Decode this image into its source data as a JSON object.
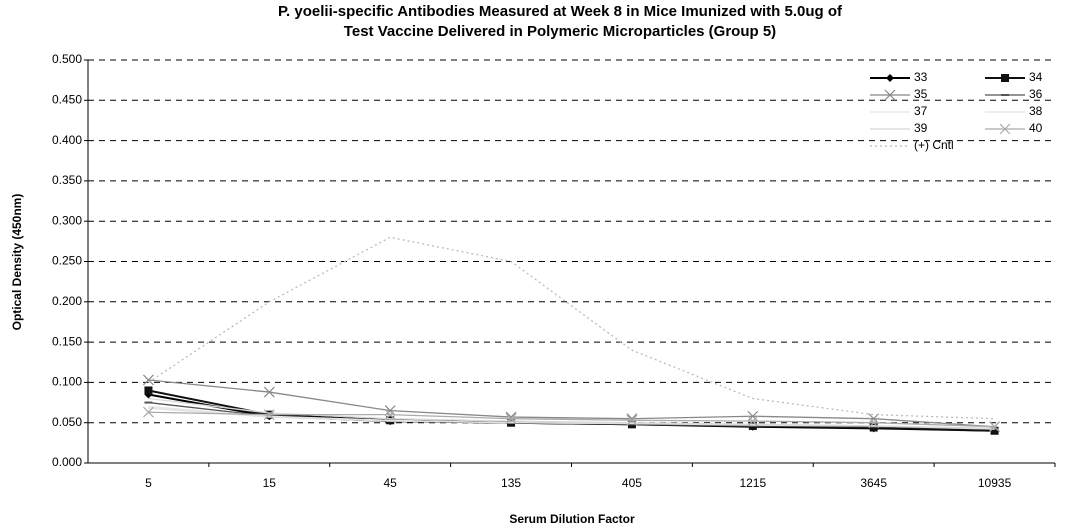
{
  "chart_data": {
    "type": "line",
    "title": [
      "P. yoelii-specific Antibodies Measured at Week 8 in Mice Imunized with 5.0ug of",
      "Test Vaccine Delivered in Polymeric Microparticles (Group 5)"
    ],
    "x_label": "Serum Dilution Factor",
    "y_label": "Optical Density (450nm)",
    "categories": [
      "5",
      "15",
      "45",
      "135",
      "405",
      "1215",
      "3645",
      "10935"
    ],
    "ylim": [
      0,
      0.5
    ],
    "yticks": [
      {
        "value": 0,
        "label": "0.000"
      },
      {
        "value": 0.05,
        "label": "0.050"
      },
      {
        "value": 0.1,
        "label": "0.100"
      },
      {
        "value": 0.15,
        "label": "0.150"
      },
      {
        "value": 0.2,
        "label": "0.200"
      },
      {
        "value": 0.25,
        "label": "0.250"
      },
      {
        "value": 0.3,
        "label": "0.300"
      },
      {
        "value": 0.35,
        "label": "0.350"
      },
      {
        "value": 0.4,
        "label": "0.400"
      },
      {
        "value": 0.45,
        "label": "0.450"
      },
      {
        "value": 0.5,
        "label": "0.500"
      }
    ],
    "grid": true,
    "legend": "top-right",
    "series": [
      {
        "name": "33",
        "color": "#000000",
        "marker": "diamond",
        "values": [
          0.085,
          0.058,
          0.052,
          0.05,
          0.048,
          0.045,
          0.043,
          0.04
        ]
      },
      {
        "name": "34",
        "color": "#111111",
        "marker": "square",
        "values": [
          0.09,
          0.06,
          0.053,
          0.05,
          0.048,
          0.046,
          0.044,
          0.04
        ]
      },
      {
        "name": "35",
        "color": "#888888",
        "marker": "x",
        "values": [
          0.103,
          0.088,
          0.065,
          0.057,
          0.055,
          0.058,
          0.055,
          0.045
        ]
      },
      {
        "name": "36",
        "color": "#555555",
        "marker": "dash",
        "values": [
          0.075,
          0.058,
          0.052,
          0.05,
          0.048,
          0.046,
          0.045,
          0.042
        ]
      },
      {
        "name": "37",
        "color": "#e6e6e6",
        "marker": "none",
        "values": [
          0.07,
          0.058,
          0.053,
          0.05,
          0.049,
          0.047,
          0.046,
          0.042
        ]
      },
      {
        "name": "38",
        "color": "#e0e0e0",
        "marker": "none",
        "values": [
          0.068,
          0.057,
          0.052,
          0.05,
          0.049,
          0.048,
          0.046,
          0.043
        ]
      },
      {
        "name": "39",
        "color": "#d8d8d8",
        "marker": "none",
        "values": [
          0.08,
          0.062,
          0.055,
          0.052,
          0.05,
          0.048,
          0.046,
          0.043
        ]
      },
      {
        "name": "40",
        "color": "#aaaaaa",
        "marker": "x",
        "values": [
          0.063,
          0.06,
          0.06,
          0.055,
          0.053,
          0.052,
          0.05,
          0.045
        ]
      },
      {
        "name": "(+) Cntl",
        "color": "#bbbbbb",
        "marker": "none",
        "dashed": true,
        "values": [
          0.1,
          0.2,
          0.28,
          0.25,
          0.14,
          0.08,
          0.06,
          0.055
        ]
      }
    ]
  }
}
